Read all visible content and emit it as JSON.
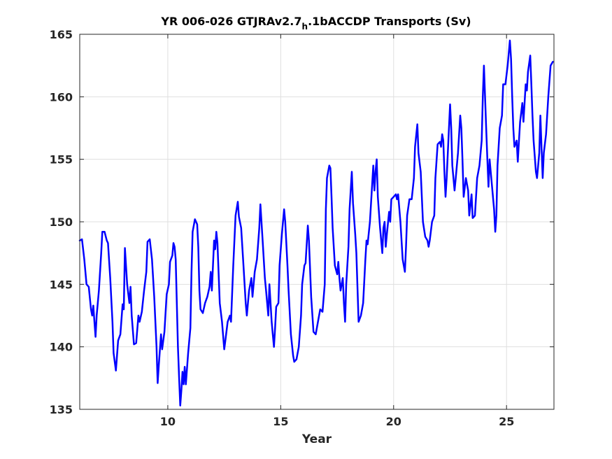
{
  "chart_data": {
    "type": "line",
    "title": {
      "main": "YR 006-026 GTJRAv2.7",
      "subscript": "h",
      "rest": ".1bACCDP Transports (Sv)"
    },
    "xlabel": "Year",
    "ylabel": "",
    "xlim": [
      6.1,
      27.1
    ],
    "ylim": [
      135,
      165
    ],
    "xticks": [
      10,
      15,
      20,
      25
    ],
    "yticks": [
      135,
      140,
      145,
      150,
      155,
      160,
      165
    ],
    "xtick_labels": [
      "10",
      "15",
      "20",
      "25"
    ],
    "ytick_labels": [
      "135",
      "140",
      "145",
      "150",
      "155",
      "160",
      "165"
    ],
    "grid": true,
    "series": [
      {
        "color": "#0000ff",
        "points": [
          [
            6.1,
            148.5
          ],
          [
            6.2,
            148.6
          ],
          [
            6.3,
            147.0
          ],
          [
            6.4,
            145.0
          ],
          [
            6.5,
            144.8
          ],
          [
            6.6,
            143.0
          ],
          [
            6.65,
            142.5
          ],
          [
            6.7,
            143.3
          ],
          [
            6.75,
            142.0
          ],
          [
            6.8,
            140.8
          ],
          [
            6.85,
            142.5
          ],
          [
            6.95,
            144.5
          ],
          [
            7.05,
            147.5
          ],
          [
            7.1,
            149.2
          ],
          [
            7.2,
            149.2
          ],
          [
            7.3,
            148.5
          ],
          [
            7.35,
            148.3
          ],
          [
            7.45,
            145.5
          ],
          [
            7.55,
            142.0
          ],
          [
            7.6,
            139.5
          ],
          [
            7.7,
            138.1
          ],
          [
            7.8,
            140.5
          ],
          [
            7.9,
            141.0
          ],
          [
            8.0,
            143.4
          ],
          [
            8.05,
            143.0
          ],
          [
            8.1,
            147.9
          ],
          [
            8.2,
            145.0
          ],
          [
            8.3,
            143.5
          ],
          [
            8.35,
            144.8
          ],
          [
            8.4,
            142.5
          ],
          [
            8.5,
            140.2
          ],
          [
            8.6,
            140.3
          ],
          [
            8.7,
            142.5
          ],
          [
            8.75,
            142.0
          ],
          [
            8.85,
            142.8
          ],
          [
            8.95,
            144.5
          ],
          [
            9.05,
            146.0
          ],
          [
            9.1,
            148.4
          ],
          [
            9.2,
            148.6
          ],
          [
            9.3,
            147.0
          ],
          [
            9.4,
            144.0
          ],
          [
            9.5,
            140.0
          ],
          [
            9.55,
            137.1
          ],
          [
            9.6,
            138.5
          ],
          [
            9.7,
            141.0
          ],
          [
            9.75,
            139.8
          ],
          [
            9.85,
            141.2
          ],
          [
            9.95,
            144.2
          ],
          [
            10.05,
            145.0
          ],
          [
            10.1,
            146.8
          ],
          [
            10.2,
            147.3
          ],
          [
            10.25,
            148.3
          ],
          [
            10.3,
            148.0
          ],
          [
            10.35,
            147.0
          ],
          [
            10.45,
            140.0
          ],
          [
            10.5,
            137.5
          ],
          [
            10.55,
            135.3
          ],
          [
            10.6,
            136.5
          ],
          [
            10.65,
            138.0
          ],
          [
            10.7,
            137.0
          ],
          [
            10.75,
            138.4
          ],
          [
            10.8,
            137.0
          ],
          [
            10.9,
            139.5
          ],
          [
            11.0,
            141.5
          ],
          [
            11.05,
            146.0
          ],
          [
            11.1,
            149.2
          ],
          [
            11.2,
            150.2
          ],
          [
            11.3,
            149.8
          ],
          [
            11.35,
            148.0
          ],
          [
            11.4,
            144.5
          ],
          [
            11.45,
            143.0
          ],
          [
            11.55,
            142.7
          ],
          [
            11.65,
            143.5
          ],
          [
            11.75,
            144.0
          ],
          [
            11.85,
            144.8
          ],
          [
            11.9,
            146.0
          ],
          [
            11.95,
            144.5
          ],
          [
            12.0,
            146.5
          ],
          [
            12.05,
            148.5
          ],
          [
            12.1,
            147.8
          ],
          [
            12.15,
            149.2
          ],
          [
            12.2,
            148.3
          ],
          [
            12.3,
            143.5
          ],
          [
            12.4,
            142.0
          ],
          [
            12.5,
            139.8
          ],
          [
            12.55,
            140.5
          ],
          [
            12.65,
            142.0
          ],
          [
            12.75,
            142.5
          ],
          [
            12.8,
            142.0
          ],
          [
            12.9,
            146.5
          ],
          [
            13.0,
            150.5
          ],
          [
            13.1,
            151.6
          ],
          [
            13.15,
            150.4
          ],
          [
            13.25,
            149.5
          ],
          [
            13.35,
            146.5
          ],
          [
            13.45,
            143.5
          ],
          [
            13.5,
            142.5
          ],
          [
            13.6,
            144.5
          ],
          [
            13.7,
            145.5
          ],
          [
            13.75,
            144.0
          ],
          [
            13.85,
            146.0
          ],
          [
            13.95,
            147.0
          ],
          [
            14.05,
            149.5
          ],
          [
            14.1,
            151.4
          ],
          [
            14.2,
            148.5
          ],
          [
            14.3,
            145.5
          ],
          [
            14.35,
            144.5
          ],
          [
            14.4,
            143.5
          ],
          [
            14.45,
            142.5
          ],
          [
            14.5,
            145.0
          ],
          [
            14.55,
            143.5
          ],
          [
            14.6,
            142.0
          ],
          [
            14.65,
            141.0
          ],
          [
            14.7,
            140.0
          ],
          [
            14.75,
            141.5
          ],
          [
            14.8,
            143.2
          ],
          [
            14.9,
            143.5
          ],
          [
            14.95,
            146.5
          ],
          [
            15.05,
            149.0
          ],
          [
            15.15,
            151.0
          ],
          [
            15.2,
            150.0
          ],
          [
            15.3,
            146.5
          ],
          [
            15.35,
            144.5
          ],
          [
            15.45,
            141.0
          ],
          [
            15.55,
            139.3
          ],
          [
            15.6,
            138.8
          ],
          [
            15.7,
            139.0
          ],
          [
            15.8,
            140.0
          ],
          [
            15.9,
            142.5
          ],
          [
            15.95,
            145.0
          ],
          [
            16.05,
            146.5
          ],
          [
            16.1,
            146.7
          ],
          [
            16.2,
            149.7
          ],
          [
            16.25,
            148.5
          ],
          [
            16.35,
            144.0
          ],
          [
            16.45,
            141.2
          ],
          [
            16.55,
            141.0
          ],
          [
            16.65,
            142.0
          ],
          [
            16.75,
            143.0
          ],
          [
            16.85,
            142.8
          ],
          [
            16.95,
            145.0
          ],
          [
            17.0,
            151.0
          ],
          [
            17.05,
            153.5
          ],
          [
            17.15,
            154.5
          ],
          [
            17.2,
            154.3
          ],
          [
            17.25,
            152.0
          ],
          [
            17.3,
            149.5
          ],
          [
            17.4,
            146.5
          ],
          [
            17.5,
            145.8
          ],
          [
            17.55,
            146.8
          ],
          [
            17.6,
            145.5
          ],
          [
            17.65,
            144.5
          ],
          [
            17.75,
            145.5
          ],
          [
            17.8,
            143.5
          ],
          [
            17.85,
            142.0
          ],
          [
            17.9,
            145.0
          ],
          [
            18.0,
            148.0
          ],
          [
            18.05,
            151.0
          ],
          [
            18.1,
            152.5
          ],
          [
            18.15,
            154.0
          ],
          [
            18.2,
            151.5
          ],
          [
            18.3,
            149.0
          ],
          [
            18.35,
            147.5
          ],
          [
            18.45,
            142.0
          ],
          [
            18.55,
            142.5
          ],
          [
            18.65,
            143.5
          ],
          [
            18.75,
            147.0
          ],
          [
            18.8,
            148.5
          ],
          [
            18.85,
            148.2
          ],
          [
            18.95,
            150.0
          ],
          [
            19.05,
            153.0
          ],
          [
            19.1,
            154.5
          ],
          [
            19.15,
            152.5
          ],
          [
            19.2,
            154.0
          ],
          [
            19.25,
            155.0
          ],
          [
            19.3,
            152.0
          ],
          [
            19.4,
            149.5
          ],
          [
            19.5,
            147.5
          ],
          [
            19.55,
            149.5
          ],
          [
            19.6,
            150.0
          ],
          [
            19.65,
            148.0
          ],
          [
            19.7,
            149.0
          ],
          [
            19.8,
            150.8
          ],
          [
            19.85,
            150.0
          ],
          [
            19.9,
            151.8
          ],
          [
            20.0,
            152.0
          ],
          [
            20.1,
            152.2
          ],
          [
            20.15,
            151.8
          ],
          [
            20.2,
            152.2
          ],
          [
            20.3,
            150.0
          ],
          [
            20.4,
            147.0
          ],
          [
            20.5,
            146.0
          ],
          [
            20.55,
            148.0
          ],
          [
            20.6,
            150.5
          ],
          [
            20.7,
            151.8
          ],
          [
            20.8,
            151.8
          ],
          [
            20.9,
            153.5
          ],
          [
            20.95,
            156.0
          ],
          [
            21.05,
            157.8
          ],
          [
            21.1,
            155.5
          ],
          [
            21.2,
            154.0
          ],
          [
            21.3,
            150.0
          ],
          [
            21.4,
            148.8
          ],
          [
            21.5,
            148.5
          ],
          [
            21.55,
            148.0
          ],
          [
            21.6,
            148.5
          ],
          [
            21.7,
            150.0
          ],
          [
            21.8,
            150.5
          ],
          [
            21.85,
            153.5
          ],
          [
            21.95,
            156.2
          ],
          [
            22.05,
            156.4
          ],
          [
            22.1,
            156.0
          ],
          [
            22.15,
            157.0
          ],
          [
            22.2,
            156.5
          ],
          [
            22.25,
            154.0
          ],
          [
            22.3,
            152.0
          ],
          [
            22.35,
            153.5
          ],
          [
            22.45,
            157.5
          ],
          [
            22.5,
            159.4
          ],
          [
            22.55,
            157.5
          ],
          [
            22.6,
            154.5
          ],
          [
            22.7,
            152.5
          ],
          [
            22.75,
            153.5
          ],
          [
            22.85,
            155.5
          ],
          [
            22.95,
            158.5
          ],
          [
            23.0,
            157.5
          ],
          [
            23.05,
            155.0
          ],
          [
            23.1,
            152.0
          ],
          [
            23.2,
            153.5
          ],
          [
            23.3,
            152.5
          ],
          [
            23.35,
            150.5
          ],
          [
            23.45,
            152.2
          ],
          [
            23.5,
            150.3
          ],
          [
            23.6,
            150.5
          ],
          [
            23.7,
            153.5
          ],
          [
            23.8,
            154.5
          ],
          [
            23.9,
            156.5
          ],
          [
            23.95,
            160.0
          ],
          [
            24.0,
            162.5
          ],
          [
            24.05,
            160.0
          ],
          [
            24.1,
            157.5
          ],
          [
            24.15,
            155.0
          ],
          [
            24.2,
            152.8
          ],
          [
            24.25,
            155.0
          ],
          [
            24.35,
            153.0
          ],
          [
            24.45,
            151.0
          ],
          [
            24.5,
            149.2
          ],
          [
            24.55,
            150.5
          ],
          [
            24.6,
            154.5
          ],
          [
            24.7,
            157.5
          ],
          [
            24.8,
            158.5
          ],
          [
            24.85,
            161.0
          ],
          [
            24.95,
            161.0
          ],
          [
            25.05,
            162.5
          ],
          [
            25.15,
            164.5
          ],
          [
            25.2,
            163.0
          ],
          [
            25.25,
            160.0
          ],
          [
            25.3,
            157.5
          ],
          [
            25.35,
            156.0
          ],
          [
            25.45,
            156.5
          ],
          [
            25.5,
            154.8
          ],
          [
            25.55,
            156.5
          ],
          [
            25.6,
            158.0
          ],
          [
            25.7,
            159.5
          ],
          [
            25.75,
            158.0
          ],
          [
            25.85,
            161.0
          ],
          [
            25.9,
            160.5
          ],
          [
            25.95,
            162.0
          ],
          [
            26.05,
            163.3
          ],
          [
            26.1,
            161.0
          ],
          [
            26.15,
            158.5
          ],
          [
            26.2,
            156.5
          ],
          [
            26.3,
            154.0
          ],
          [
            26.35,
            153.5
          ],
          [
            26.4,
            154.5
          ],
          [
            26.45,
            155.5
          ],
          [
            26.5,
            158.5
          ],
          [
            26.55,
            156.0
          ],
          [
            26.6,
            153.5
          ],
          [
            26.65,
            155.5
          ],
          [
            26.75,
            157.0
          ],
          [
            26.85,
            160.0
          ],
          [
            26.95,
            162.5
          ],
          [
            27.05,
            162.8
          ]
        ]
      }
    ]
  }
}
